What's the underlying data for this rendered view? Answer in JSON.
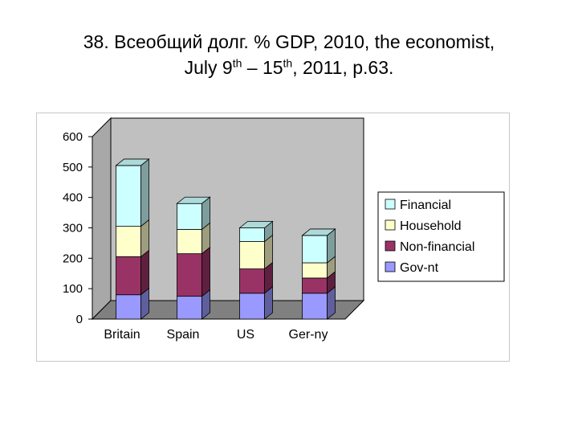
{
  "title": {
    "line1": "38. Всеобщий долг. % GDP, 2010, the economist,",
    "line2_pre": "July 9",
    "line2_sup1": "th",
    "line2_mid": " – 15",
    "line2_sup2": "th",
    "line2_post": ", 2011, p.63."
  },
  "colors": {
    "Gov-nt": "#9999ff",
    "Non-financial": "#993366",
    "Household": "#ffffcc",
    "Financial": "#ccffff",
    "wall": "#c0c0c0",
    "floor": "#808080"
  },
  "chart_data": {
    "type": "bar",
    "stacked": true,
    "three_d": true,
    "categories": [
      "Britain",
      "Spain",
      "US",
      "Ger-ny"
    ],
    "series": [
      {
        "name": "Gov-nt",
        "values": [
          80,
          75,
          85,
          85
        ]
      },
      {
        "name": "Non-financial",
        "values": [
          125,
          140,
          80,
          50
        ]
      },
      {
        "name": "Household",
        "values": [
          100,
          80,
          90,
          50
        ]
      },
      {
        "name": "Financial",
        "values": [
          200,
          85,
          45,
          90
        ]
      }
    ],
    "yticks": [
      "0",
      "100",
      "200",
      "300",
      "400",
      "500",
      "600"
    ],
    "ylim": [
      0,
      600
    ],
    "legend_placement": "right",
    "legend_order": [
      "Financial",
      "Household",
      "Non-financial",
      "Gov-nt"
    ]
  }
}
